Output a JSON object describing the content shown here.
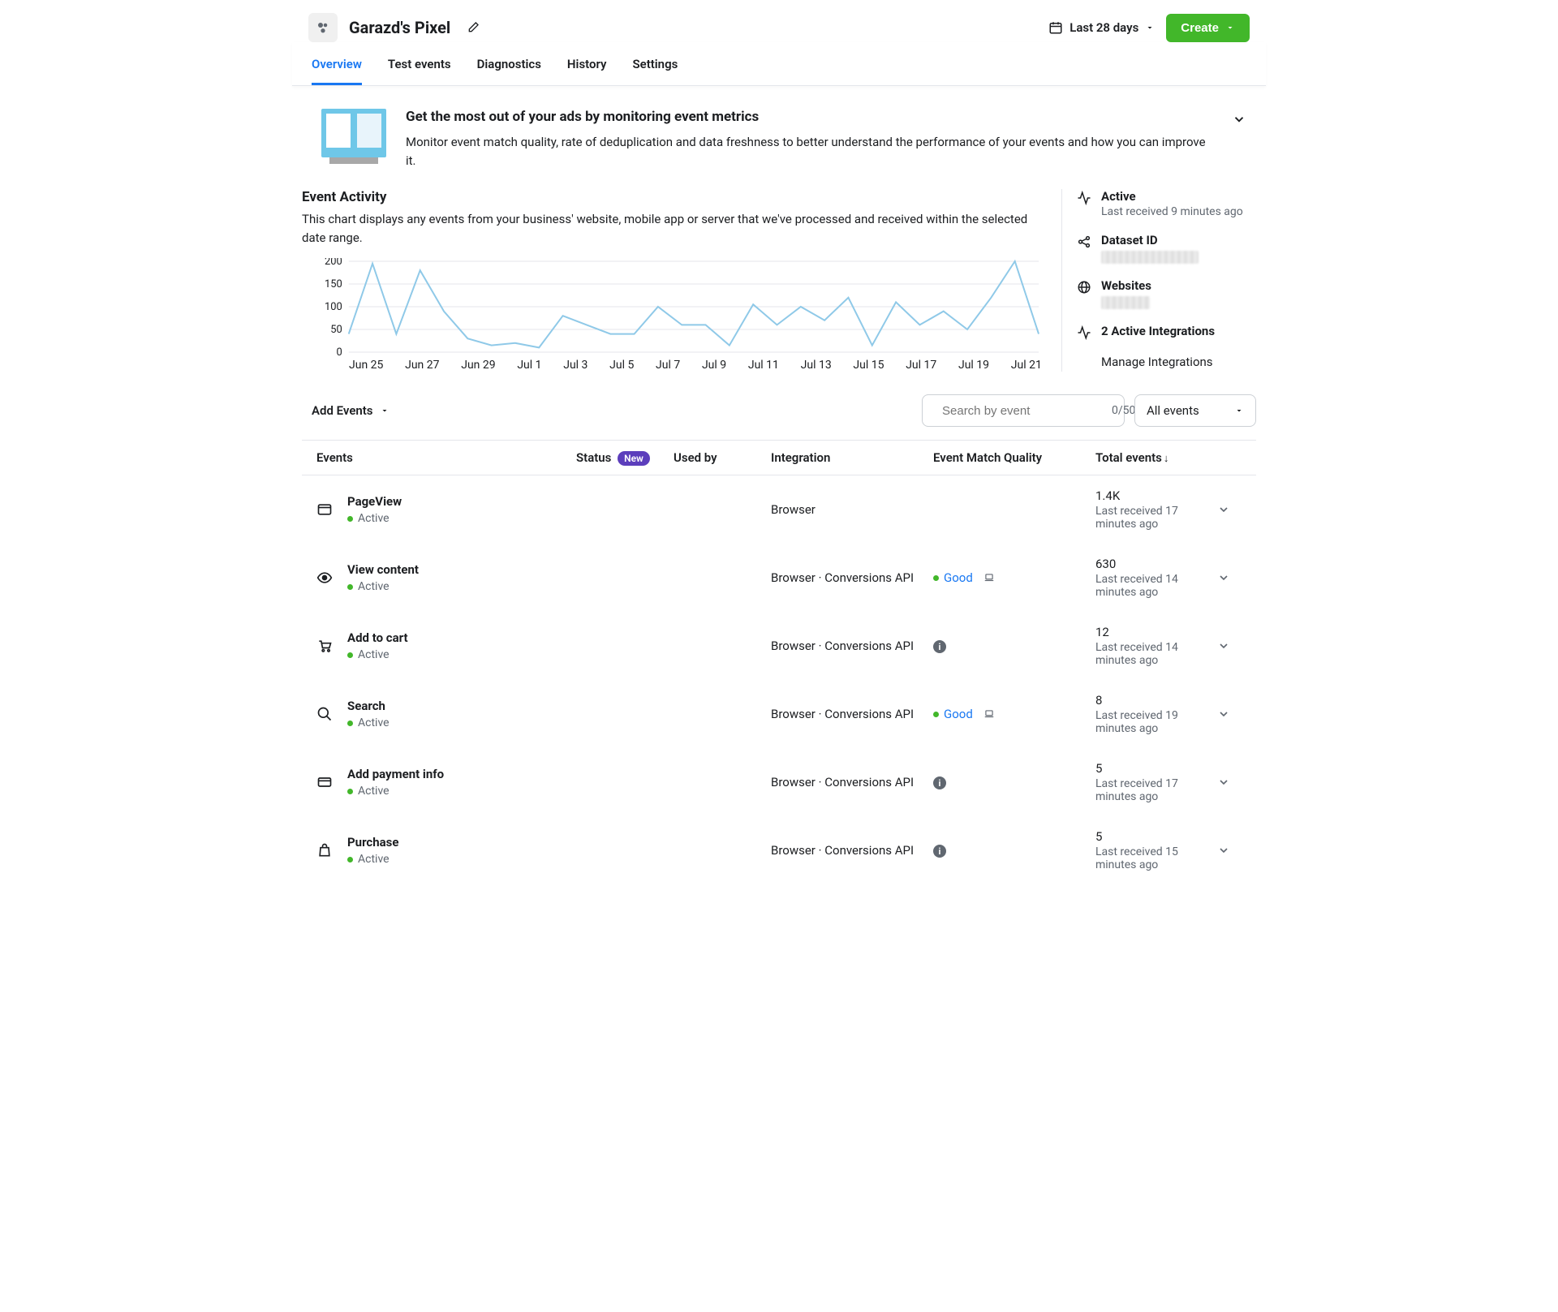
{
  "header": {
    "title": "Garazd's Pixel",
    "date_range": "Last 28 days",
    "create_label": "Create"
  },
  "tabs": [
    "Overview",
    "Test events",
    "Diagnostics",
    "History",
    "Settings"
  ],
  "active_tab": 0,
  "info": {
    "title": "Get the most out of your ads by monitoring event metrics",
    "desc": "Monitor event match quality, rate of deduplication and data freshness to better understand the performance of your events and how you can improve it."
  },
  "activity": {
    "title": "Event Activity",
    "desc": "This chart displays any events from your business' website, mobile app or server that we've processed and received within the selected date range."
  },
  "chart": {
    "ylim": [
      0,
      200
    ],
    "ytick_step": 50,
    "yticks": [
      "0",
      "50",
      "100",
      "150",
      "200"
    ],
    "xlabels": [
      "Jun 25",
      "Jun 27",
      "Jun 29",
      "Jul 1",
      "Jul 3",
      "Jul 5",
      "Jul 7",
      "Jul 9",
      "Jul 11",
      "Jul 13",
      "Jul 15",
      "Jul 17",
      "Jul 19",
      "Jul 21"
    ],
    "values": [
      40,
      195,
      40,
      180,
      90,
      30,
      15,
      20,
      10,
      80,
      60,
      40,
      40,
      100,
      60,
      60,
      15,
      105,
      60,
      100,
      70,
      120,
      15,
      110,
      60,
      90,
      50,
      120,
      200,
      40
    ],
    "line_color": "#8fc9e8",
    "grid_color": "#e4e6eb",
    "line_width": 2
  },
  "sidebar": {
    "active_label": "Active",
    "active_sub": "Last received 9 minutes ago",
    "dataset_label": "Dataset ID",
    "websites_label": "Websites",
    "integrations_label": "2 Active Integrations",
    "manage_label": "Manage Integrations"
  },
  "events_bar": {
    "add_label": "Add Events",
    "search_placeholder": "Search by event",
    "search_count": "0/50",
    "filter_label": "All events"
  },
  "table": {
    "headers": {
      "events": "Events",
      "status": "Status",
      "new_badge": "New",
      "used_by": "Used by",
      "integration": "Integration",
      "quality": "Event Match Quality",
      "total": "Total events"
    },
    "rows": [
      {
        "icon": "window",
        "name": "PageView",
        "status": "Active",
        "integration": "Browser",
        "quality": "",
        "quality_type": "none",
        "total": "1.4K",
        "total_sub": "Last received 17 minutes ago"
      },
      {
        "icon": "eye",
        "name": "View content",
        "status": "Active",
        "integration": "Browser · Conversions API",
        "quality": "Good",
        "quality_type": "good",
        "total": "630",
        "total_sub": "Last received 14 minutes ago"
      },
      {
        "icon": "cart",
        "name": "Add to cart",
        "status": "Active",
        "integration": "Browser · Conversions API",
        "quality": "",
        "quality_type": "info",
        "total": "12",
        "total_sub": "Last received 14 minutes ago"
      },
      {
        "icon": "search",
        "name": "Search",
        "status": "Active",
        "integration": "Browser · Conversions API",
        "quality": "Good",
        "quality_type": "good",
        "total": "8",
        "total_sub": "Last received 19 minutes ago"
      },
      {
        "icon": "card",
        "name": "Add payment info",
        "status": "Active",
        "integration": "Browser · Conversions API",
        "quality": "",
        "quality_type": "info",
        "total": "5",
        "total_sub": "Last received 17 minutes ago"
      },
      {
        "icon": "bag",
        "name": "Purchase",
        "status": "Active",
        "integration": "Browser · Conversions API",
        "quality": "",
        "quality_type": "info",
        "total": "5",
        "total_sub": "Last received 15 minutes ago"
      }
    ]
  }
}
